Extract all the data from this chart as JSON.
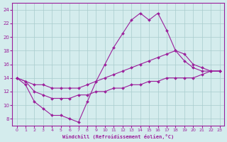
{
  "bg_color": "#d4eced",
  "line_color": "#9b1f9b",
  "grid_color": "#a8cccc",
  "xlabel": "Windchill (Refroidissement éolien,°C)",
  "xlabel_color": "#9b1f9b",
  "tick_color": "#9b1f9b",
  "xlim": [
    -0.5,
    23.5
  ],
  "ylim": [
    7,
    25
  ],
  "yticks": [
    8,
    10,
    12,
    14,
    16,
    18,
    20,
    22,
    24
  ],
  "xticks": [
    0,
    1,
    2,
    3,
    4,
    5,
    6,
    7,
    8,
    9,
    10,
    11,
    12,
    13,
    14,
    15,
    16,
    17,
    18,
    19,
    20,
    21,
    22,
    23
  ],
  "curve1_x": [
    0,
    1,
    2,
    3,
    4,
    5,
    6,
    7,
    8,
    9,
    10,
    11,
    12,
    13,
    14,
    15,
    16,
    17,
    18,
    19,
    20,
    21,
    22,
    23
  ],
  "curve1_y": [
    14.0,
    13.0,
    10.5,
    9.5,
    8.5,
    8.5,
    8.0,
    7.5,
    10.5,
    13.5,
    16.0,
    18.5,
    20.5,
    22.5,
    23.5,
    22.5,
    23.5,
    21.0,
    18.0,
    16.5,
    15.5,
    15.0,
    15.0,
    15.0
  ],
  "curve2_x": [
    0,
    1,
    2,
    3,
    4,
    5,
    6,
    7,
    8,
    9,
    10,
    11,
    12,
    13,
    14,
    15,
    16,
    17,
    18,
    19,
    20,
    21,
    22,
    23
  ],
  "curve2_y": [
    14.0,
    13.5,
    13.0,
    13.0,
    12.5,
    12.5,
    12.5,
    12.5,
    13.0,
    13.5,
    14.0,
    14.5,
    15.0,
    15.5,
    16.0,
    16.5,
    17.0,
    17.5,
    18.0,
    17.5,
    16.0,
    15.5,
    15.0,
    15.0
  ],
  "curve3_x": [
    0,
    1,
    2,
    3,
    4,
    5,
    6,
    7,
    8,
    9,
    10,
    11,
    12,
    13,
    14,
    15,
    16,
    17,
    18,
    19,
    20,
    21,
    22,
    23
  ],
  "curve3_y": [
    14.0,
    13.5,
    12.0,
    11.5,
    11.0,
    11.0,
    11.0,
    11.5,
    11.5,
    12.0,
    12.0,
    12.5,
    12.5,
    13.0,
    13.0,
    13.5,
    13.5,
    14.0,
    14.0,
    14.0,
    14.0,
    14.5,
    15.0,
    15.0
  ]
}
